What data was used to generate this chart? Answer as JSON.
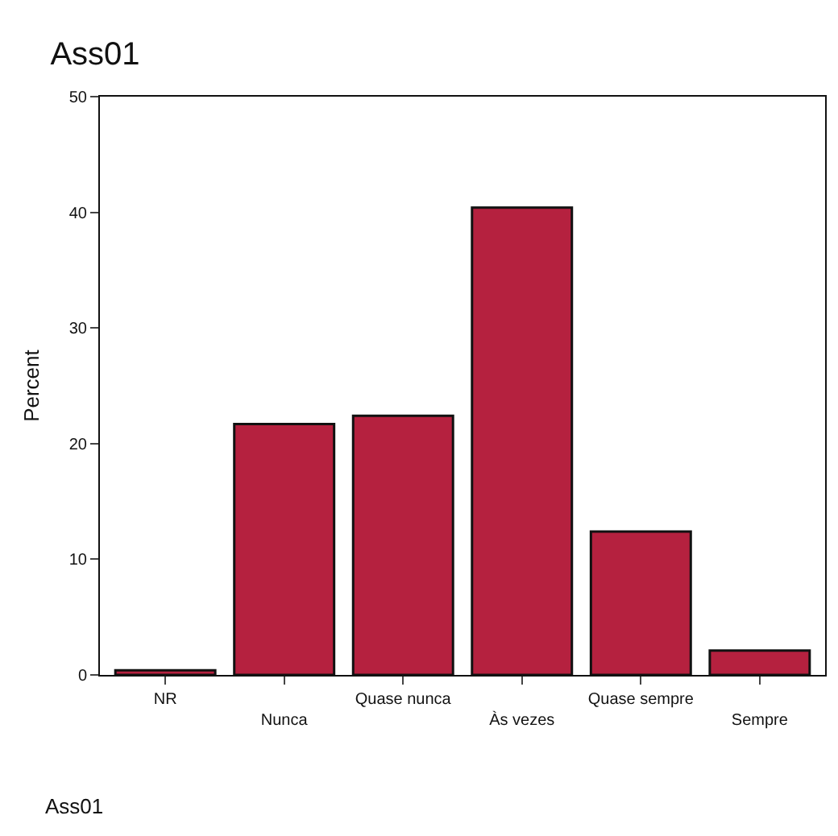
{
  "chart_data": {
    "type": "bar",
    "title": "Ass01",
    "ylabel": "Percent",
    "categories": [
      "NR",
      "Nunca",
      "Quase nunca",
      "Às vezes",
      "Quase sempre",
      "Sempre"
    ],
    "values": [
      0.4,
      21.7,
      22.4,
      40.4,
      12.4,
      2.1
    ],
    "color": "#b5213f",
    "ylim": [
      0,
      50
    ],
    "yticks": [
      0,
      10,
      20,
      30,
      40,
      50
    ],
    "annotations": [
      "Ass01"
    ]
  }
}
